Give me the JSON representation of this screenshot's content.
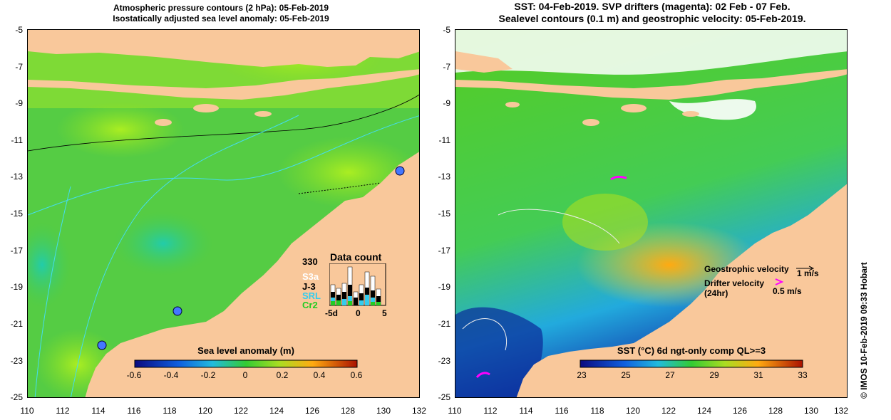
{
  "left_title": {
    "line1": "Atmospheric pressure contours (2 hPa): 05-Feb-2019",
    "line2": "Isostatically adjusted sea level anomaly: 05-Feb-2019"
  },
  "right_title": {
    "line1": "SST: 04-Feb-2019. SVP drifters (magenta): 02 Feb - 07 Feb.",
    "line2": "Sealevel contours (0.1 m) and geostrophic velocity: 05-Feb-2019."
  },
  "latitude_ticks": [
    "-5",
    "-7",
    "-9",
    "-11",
    "-13",
    "-15",
    "-17",
    "-19",
    "-21",
    "-23",
    "-25"
  ],
  "longitude_ticks": [
    "110",
    "112",
    "114",
    "116",
    "118",
    "120",
    "122",
    "124",
    "126",
    "128",
    "130",
    "132"
  ],
  "left_colorbar": {
    "title": "Sea level anomaly (m)",
    "labels": [
      "-0.6",
      "-0.4",
      "-0.2",
      "0",
      "0.2",
      "0.4",
      "0.6"
    ]
  },
  "right_colorbar": {
    "title": "SST (°C) 6d ngt-only comp QL>=3",
    "labels": [
      "23",
      "25",
      "27",
      "29",
      "31",
      "33"
    ]
  },
  "data_count": {
    "title": "Data count",
    "max": "330",
    "sat_labels": [
      "S3a",
      "J-3",
      "SRL",
      "Cr2"
    ],
    "sat_colors": [
      "#ffffff",
      "#000000",
      "#33ccee",
      "#22cc22"
    ],
    "x_labels": [
      "-5d",
      "0",
      "5"
    ]
  },
  "velocity_legend": {
    "geostrophic": "Geostrophic velocity",
    "geostrophic_unit": "1 m/s",
    "drifter": "Drifter velocity",
    "drifter_period": "(24hr)",
    "drifter_unit": "0.5 m/s"
  },
  "credit": "© IMOS 10-Feb-2019 09:33 Hobart",
  "colors": {
    "land": "#f9c89b",
    "ocean_green": "#66dd22",
    "drifter": "#ff00ff"
  }
}
